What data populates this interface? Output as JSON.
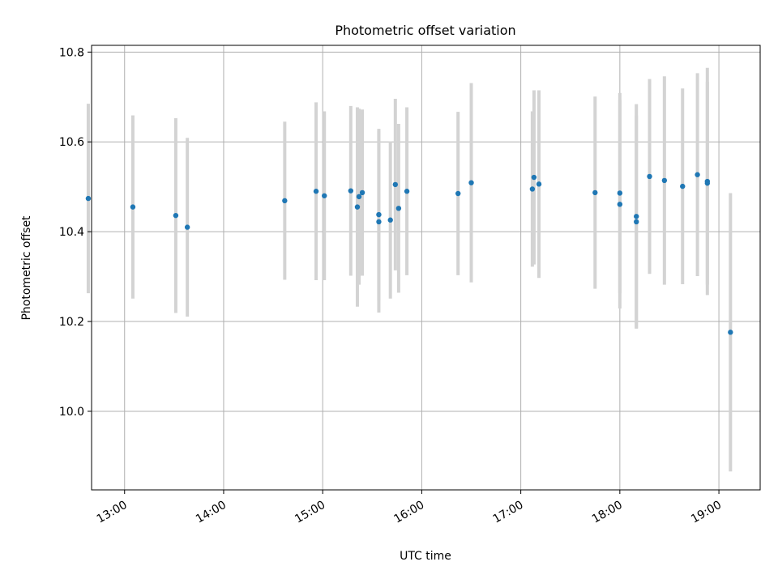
{
  "chart_data": {
    "type": "scatter",
    "title": "Photometric offset variation",
    "xlabel": "UTC time",
    "ylabel": "Photometric offset",
    "xlim": [
      "12:40",
      "19:25"
    ],
    "ylim": [
      9.825,
      10.815
    ],
    "x_ticks": [
      "13:00",
      "14:00",
      "15:00",
      "16:00",
      "17:00",
      "18:00",
      "19:00"
    ],
    "y_ticks": [
      "10.0",
      "10.2",
      "10.4",
      "10.6",
      "10.8"
    ],
    "grid": true,
    "point_color": "#1f77b4",
    "errorbar_color": "#d3d3d3",
    "points": [
      {
        "x": "12:38",
        "y": 10.474,
        "err": 0.211
      },
      {
        "x": "13:05",
        "y": 10.455,
        "err": 0.204
      },
      {
        "x": "13:31",
        "y": 10.436,
        "err": 0.217
      },
      {
        "x": "13:38",
        "y": 10.41,
        "err": 0.199
      },
      {
        "x": "14:37",
        "y": 10.469,
        "err": 0.176
      },
      {
        "x": "14:56",
        "y": 10.49,
        "err": 0.198
      },
      {
        "x": "15:01",
        "y": 10.48,
        "err": 0.188
      },
      {
        "x": "15:17",
        "y": 10.491,
        "err": 0.189
      },
      {
        "x": "15:21",
        "y": 10.455,
        "err": 0.222
      },
      {
        "x": "15:22",
        "y": 10.478,
        "err": 0.196
      },
      {
        "x": "15:24",
        "y": 10.487,
        "err": 0.185
      },
      {
        "x": "15:34",
        "y": 10.438,
        "err": 0.191
      },
      {
        "x": "15:34",
        "y": 10.422,
        "err": 0.202
      },
      {
        "x": "15:41",
        "y": 10.426,
        "err": 0.175
      },
      {
        "x": "15:44",
        "y": 10.505,
        "err": 0.191
      },
      {
        "x": "15:46",
        "y": 10.452,
        "err": 0.188
      },
      {
        "x": "15:51",
        "y": 10.49,
        "err": 0.187
      },
      {
        "x": "16:22",
        "y": 10.485,
        "err": 0.182
      },
      {
        "x": "16:30",
        "y": 10.509,
        "err": 0.222
      },
      {
        "x": "17:07",
        "y": 10.495,
        "err": 0.173
      },
      {
        "x": "17:08",
        "y": 10.521,
        "err": 0.194
      },
      {
        "x": "17:11",
        "y": 10.506,
        "err": 0.209
      },
      {
        "x": "17:45",
        "y": 10.487,
        "err": 0.214
      },
      {
        "x": "18:00",
        "y": 10.461,
        "err": 0.232
      },
      {
        "x": "18:00",
        "y": 10.486,
        "err": 0.223
      },
      {
        "x": "18:10",
        "y": 10.434,
        "err": 0.25
      },
      {
        "x": "18:10",
        "y": 10.422,
        "err": 0.237
      },
      {
        "x": "18:18",
        "y": 10.523,
        "err": 0.217
      },
      {
        "x": "18:27",
        "y": 10.514,
        "err": 0.232
      },
      {
        "x": "18:38",
        "y": 10.501,
        "err": 0.218
      },
      {
        "x": "18:47",
        "y": 10.527,
        "err": 0.226
      },
      {
        "x": "18:53",
        "y": 10.512,
        "err": 0.253
      },
      {
        "x": "18:53",
        "y": 10.508,
        "err": 0.226
      },
      {
        "x": "19:07",
        "y": 10.176,
        "err": 0.31
      }
    ]
  }
}
